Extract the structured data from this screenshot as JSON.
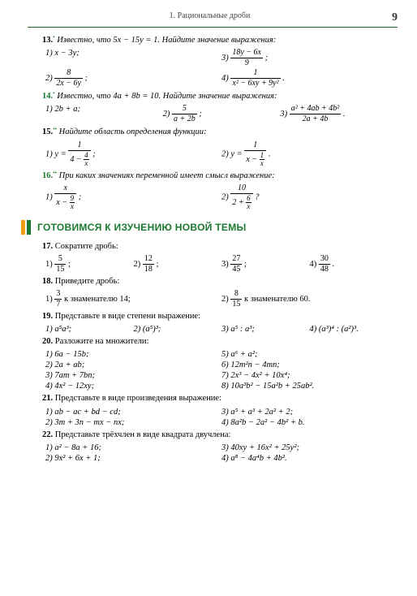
{
  "header": {
    "title": "1.  Рациональные дроби",
    "page": "9"
  },
  "q13": {
    "num": "13.",
    "dot": "•",
    "txt": " Известно, что 5x − 15y = 1. Найдите значение выражения:",
    "a1": "1) x − 3y;",
    "a3": "3) ",
    "a2": "2) ",
    "a4": "4) ",
    "f3n": "18y − 6x",
    "f3d": "9",
    "f2n": "8",
    "f2d": "2x − 6y",
    "f4n": "1",
    "f4d": "x² − 6xy + 9y²"
  },
  "q14": {
    "num": "14.",
    "dot": "•",
    "txt": " Известно, что 4a + 8b = 10. Найдите значение выражения:",
    "a1": "1) 2b + a;",
    "a2": "2) ",
    "a3": "3) ",
    "f2n": "5",
    "f2d": "a + 2b",
    "f3n": "a² + 4ab + 4b²",
    "f3d": "2a + 4b"
  },
  "q15": {
    "num": "15.",
    "dot": "••",
    "txt": " Найдите область определения функции:",
    "a1": "1) y = ",
    "a2": "2) y = ",
    "f1n": "1",
    "f1d1": "4 − ",
    "f1dn": "4",
    "f1dd": "x",
    "f2n": "1",
    "f2d1": "x − ",
    "f2dn": "1",
    "f2dd": "x"
  },
  "q16": {
    "num": "16.",
    "dot": "••",
    "txt": " При каких значениях переменной имеет смысл выражение:",
    "a1": "1) ",
    "a2": "2) ",
    "f1nn": "x",
    "f1d1": "x − ",
    "f1dn": "9",
    "f1dd": "x",
    "f2nn": "10",
    "f2d1": "2 + ",
    "f2dn": "6",
    "f2dd": "x"
  },
  "section": {
    "title": "ГОТОВИМСЯ К ИЗУЧЕНИЮ НОВОЙ ТЕМЫ"
  },
  "q17": {
    "num": "17.",
    "txt": " Сократите дробь:",
    "a1": "1) ",
    "a2": "2) ",
    "a3": "3) ",
    "a4": "4) ",
    "f1n": "5",
    "f1d": "15",
    "f2n": "12",
    "f2d": "18",
    "f3n": "27",
    "f3d": "45",
    "f4n": "30",
    "f4d": "48"
  },
  "q18": {
    "num": "18.",
    "txt": " Приведите дробь:",
    "a1": "1) ",
    "a1t": " к знаменателю 14;",
    "a2": "2) ",
    "a2t": " к знаменателю 60.",
    "f1n": "3",
    "f1d": "7",
    "f2n": "8",
    "f2d": "15"
  },
  "q19": {
    "num": "19.",
    "txt": " Представьте в виде степени выражение:",
    "a1": "1) a⁵a³;",
    "a2": "2) (a⁵)³;",
    "a3": "3) a⁵ : a³;",
    "a4": "4) (a³)⁴ : (a²)³."
  },
  "q20": {
    "num": "20.",
    "txt": " Разложите на множители:",
    "r1a": "1) 6a − 15b;",
    "r1b": "5) a⁶ + a²;",
    "r2a": "2) 2a + ab;",
    "r2b": "6) 12m²n − 4mn;",
    "r3a": "3) 7am + 7bn;",
    "r3b": "7) 2x³ − 4x² + 10x⁴;",
    "r4a": "4) 4x² − 12xy;",
    "r4b": "8) 10a³b² − 15a²b + 25ab²."
  },
  "q21": {
    "num": "21.",
    "txt": " Представьте в виде произведения выражение:",
    "r1a": "1) ab − ac + bd − cd;",
    "r1b": "3) a⁵ + a³ + 2a² + 2;",
    "r2a": "2) 3m + 3n − mx − nx;",
    "r2b": "4) 8a²b − 2a² − 4b² + b."
  },
  "q22": {
    "num": "22.",
    "txt": " Представьте трёхчлен в виде квадрата двучлена:",
    "r1a": "1) a² − 8a + 16;",
    "r1b": "3) 40xy + 16x² + 25y²;",
    "r2a": "2) 9x² + 6x + 1;",
    "r2b": "4) a⁸ − 4a⁴b + 4b²."
  }
}
